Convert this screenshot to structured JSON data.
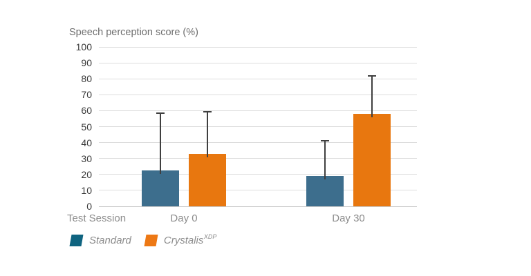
{
  "chart_data": {
    "type": "bar",
    "title": "Speech perception score (%)",
    "xlabel": "Test Session",
    "categories": [
      "Day 0",
      "Day 30"
    ],
    "series": [
      {
        "name": "Standard",
        "superscript": "",
        "values": [
          22.5,
          19
        ],
        "error_upper": [
          36,
          22
        ],
        "bar_color": "#3d6e8d",
        "legend_color": "#0f6480"
      },
      {
        "name": "Crystalis",
        "superscript": "XDP",
        "values": [
          33,
          58
        ],
        "error_upper": [
          26.5,
          24
        ],
        "bar_color": "#e8770f",
        "legend_color": "#ed7814"
      }
    ],
    "ylim": [
      0,
      100
    ],
    "yticks": [
      0,
      10,
      20,
      30,
      40,
      50,
      60,
      70,
      80,
      90,
      100
    ],
    "grid": "horizontal-only",
    "gridline_color": "#dcdcdc",
    "error_bar_color": "#3f3f3f",
    "legend_position": "bottom-left"
  }
}
